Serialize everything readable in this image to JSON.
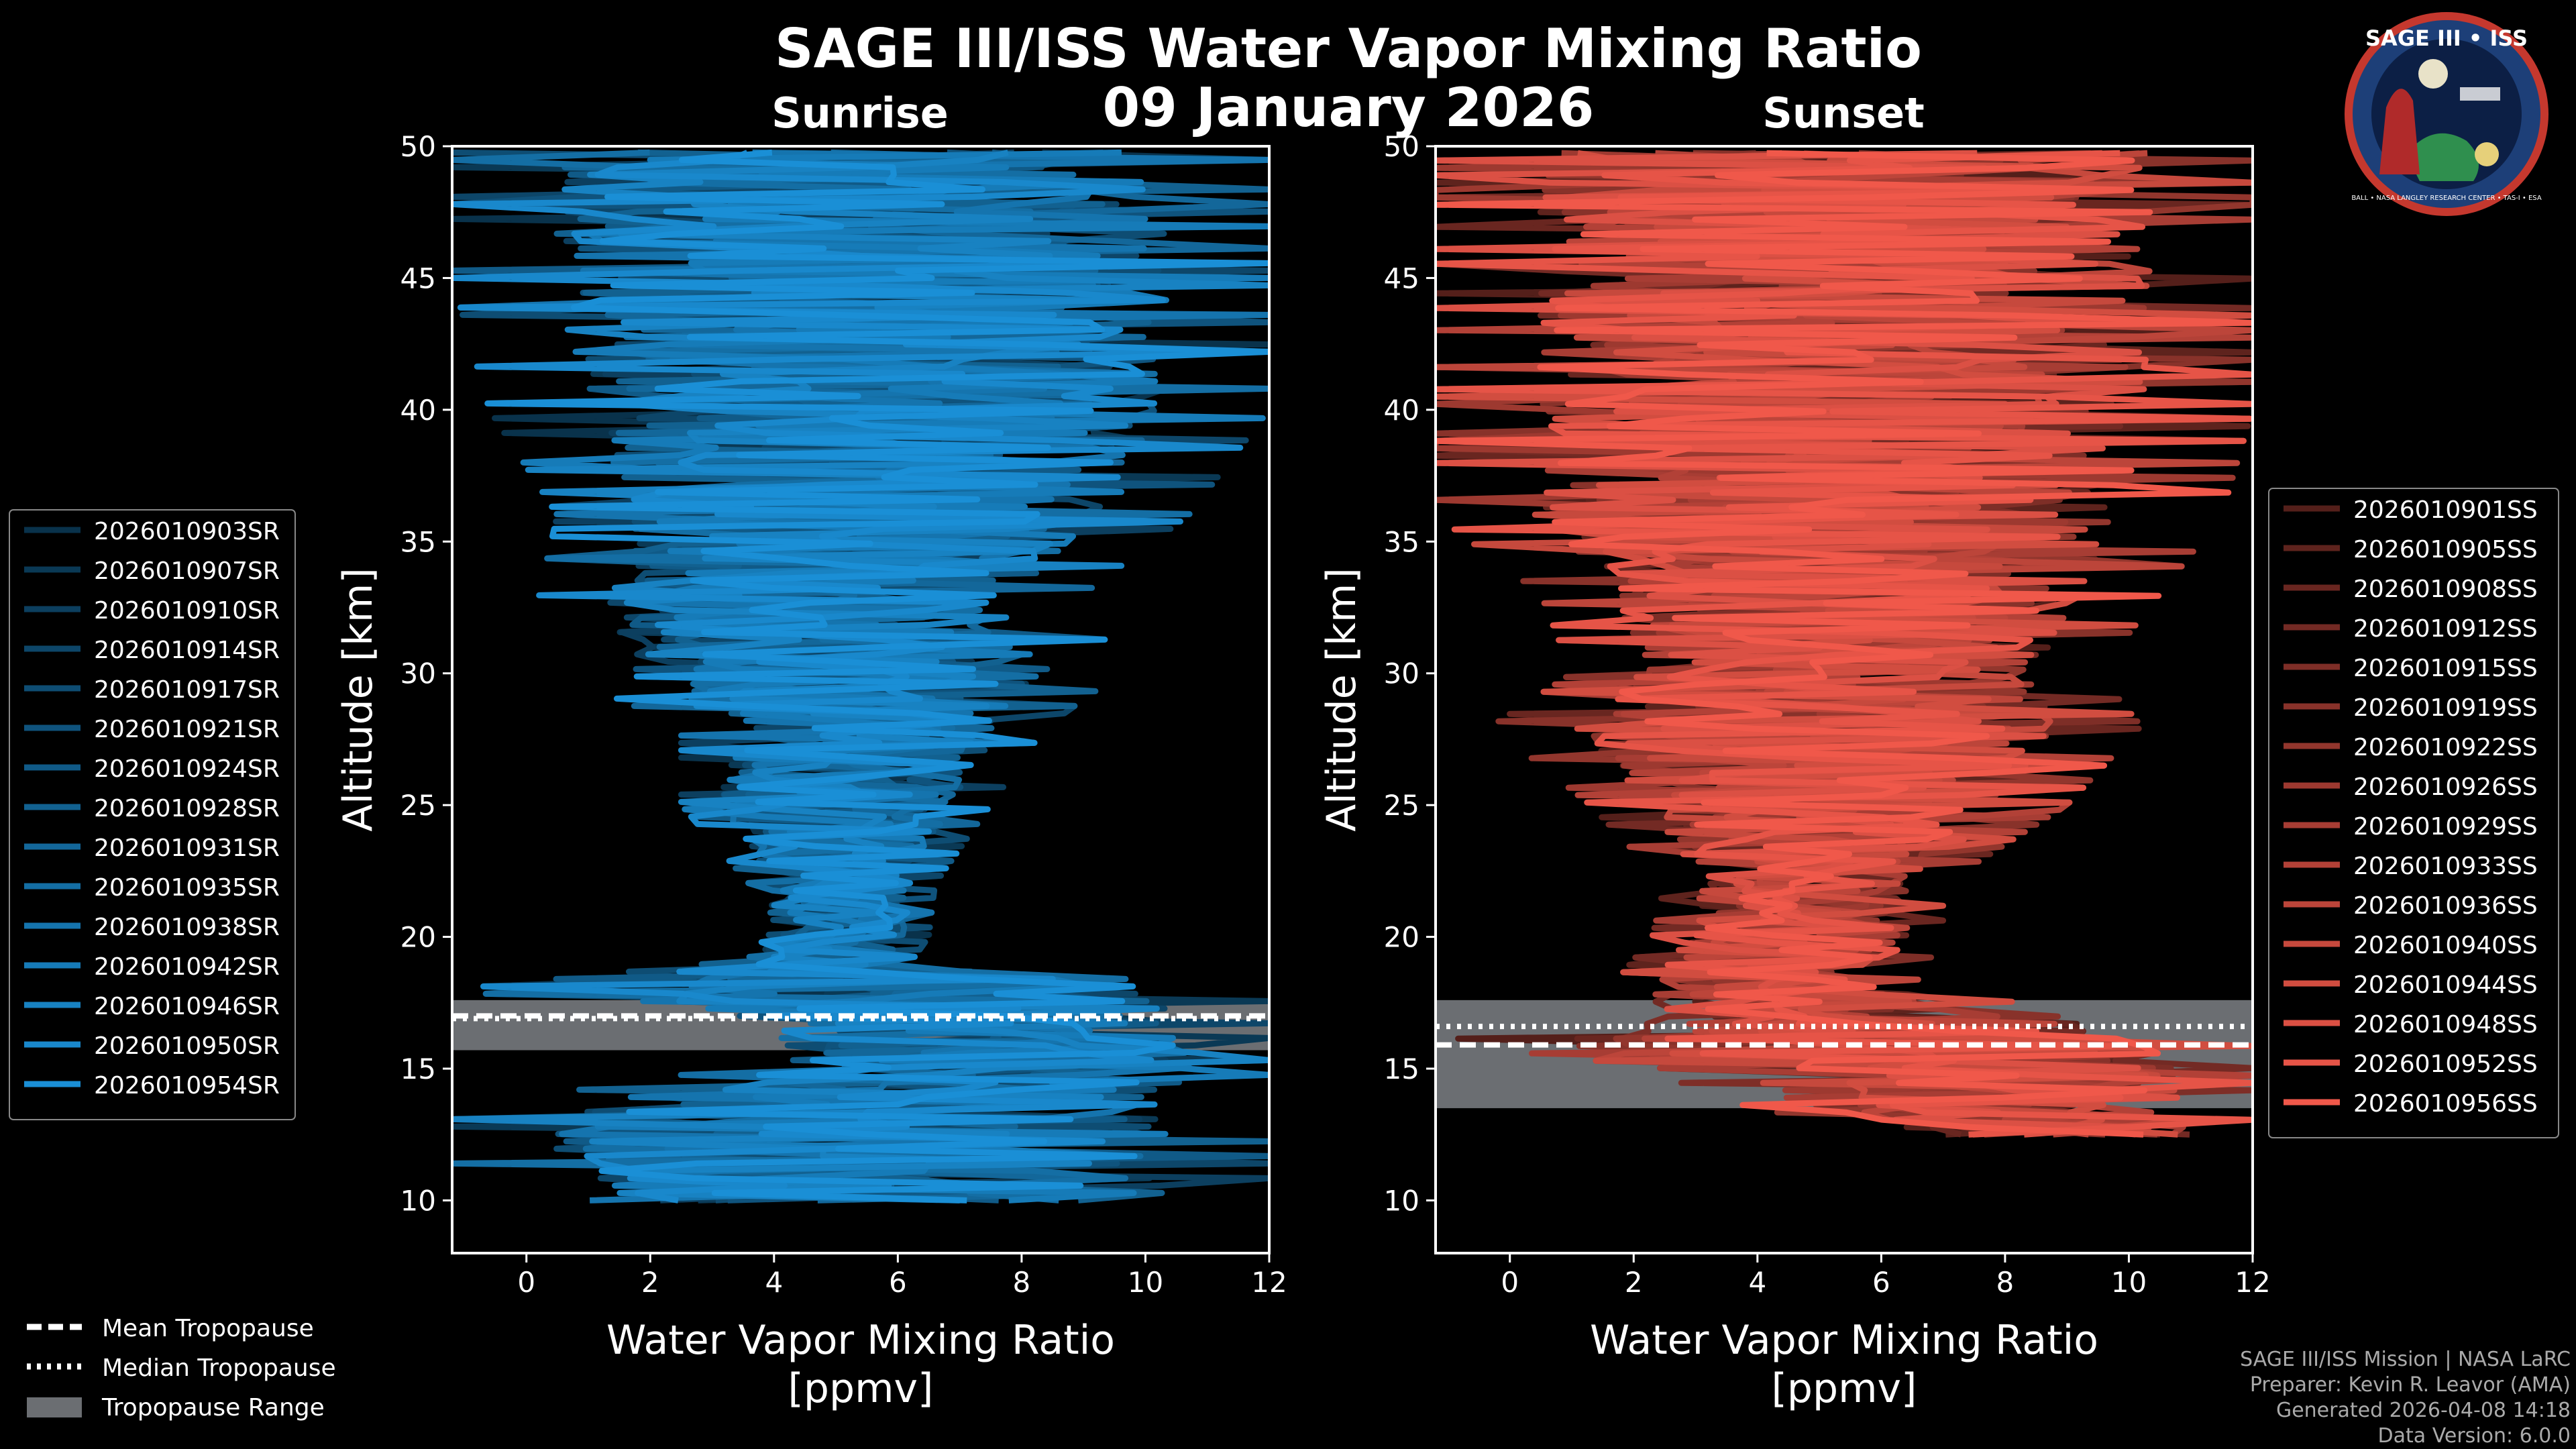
{
  "figure": {
    "title": "SAGE III/ISS Water Vapor Mixing Ratio",
    "date": "09 January 2026",
    "colors": {
      "background": "#000000",
      "sunrise": "#1a8fd6",
      "sunset": "#f0584a",
      "tropopause_fill": "#6b6e72"
    }
  },
  "logo": {
    "top_text": "SAGE III • ISS",
    "ring_text": "BALL • NASA LANGLEY RESEARCH CENTER • TAS-I • ESA"
  },
  "credits": {
    "line1": "SAGE III/ISS Mission | NASA LaRC",
    "line2": "Preparer: Kevin R. Leavor (AMA)",
    "line3": "Generated 2026-04-08 14:18",
    "line4": "Data Version: 6.0.0"
  },
  "tropopause_legend": {
    "mean": "Mean Tropopause",
    "median": "Median Tropopause",
    "range": "Tropopause Range"
  },
  "chart_data": [
    {
      "type": "line",
      "title": "Sunrise",
      "xlabel": "Water Vapor Mixing Ratio\n[ppmv]",
      "xlabel_lines": [
        "Water Vapor Mixing Ratio",
        "[ppmv]"
      ],
      "ylabel": "Altitude [km]",
      "xlim": [
        -1.2,
        12
      ],
      "ylim": [
        8,
        50
      ],
      "xticks": [
        0,
        2,
        4,
        6,
        8,
        10,
        12
      ],
      "yticks": [
        10,
        15,
        20,
        25,
        30,
        35,
        40,
        45,
        50
      ],
      "legend_position": "left",
      "series_names": [
        "2026010903SR",
        "2026010907SR",
        "2026010910SR",
        "2026010914SR",
        "2026010917SR",
        "2026010921SR",
        "2026010924SR",
        "2026010928SR",
        "2026010931SR",
        "2026010935SR",
        "2026010938SR",
        "2026010942SR",
        "2026010946SR",
        "2026010950SR",
        "2026010954SR"
      ],
      "tropopause": {
        "mean": 17.0,
        "median": 16.9,
        "range": [
          15.7,
          17.6
        ]
      },
      "profile_envelope": [
        {
          "alt": 10,
          "min": -1.2,
          "max": 12
        },
        {
          "alt": 13.5,
          "min": -1.2,
          "max": 12
        },
        {
          "alt": 15,
          "min": 3.2,
          "max": 12
        },
        {
          "alt": 16,
          "min": 2.8,
          "max": 12
        },
        {
          "alt": 17,
          "min": 2.2,
          "max": 12
        },
        {
          "alt": 18,
          "min": -1.2,
          "max": 12
        },
        {
          "alt": 19,
          "min": 3.0,
          "max": 6.2
        },
        {
          "alt": 20,
          "min": 3.5,
          "max": 6.5
        },
        {
          "alt": 22,
          "min": 3.6,
          "max": 6.6
        },
        {
          "alt": 25,
          "min": 2.5,
          "max": 7.5
        },
        {
          "alt": 28,
          "min": 2.5,
          "max": 8.4
        },
        {
          "alt": 30,
          "min": 0.5,
          "max": 9.6
        },
        {
          "alt": 33,
          "min": 0.2,
          "max": 9.0
        },
        {
          "alt": 36,
          "min": 0.5,
          "max": 10.7
        },
        {
          "alt": 40,
          "min": -0.6,
          "max": 12
        },
        {
          "alt": 45,
          "min": -1.2,
          "max": 12
        },
        {
          "alt": 50,
          "min": -1.2,
          "max": 12
        }
      ]
    },
    {
      "type": "line",
      "title": "Sunset",
      "xlabel": "Water Vapor Mixing Ratio\n[ppmv]",
      "xlabel_lines": [
        "Water Vapor Mixing Ratio",
        "[ppmv]"
      ],
      "ylabel": "Altitude [km]",
      "xlim": [
        -1.2,
        12
      ],
      "ylim": [
        8,
        50
      ],
      "xticks": [
        0,
        2,
        4,
        6,
        8,
        10,
        12
      ],
      "yticks": [
        10,
        15,
        20,
        25,
        30,
        35,
        40,
        45,
        50
      ],
      "legend_position": "right",
      "series_names": [
        "2026010901SS",
        "2026010905SS",
        "2026010908SS",
        "2026010912SS",
        "2026010915SS",
        "2026010919SS",
        "2026010922SS",
        "2026010926SS",
        "2026010929SS",
        "2026010933SS",
        "2026010936SS",
        "2026010940SS",
        "2026010944SS",
        "2026010948SS",
        "2026010952SS",
        "2026010956SS"
      ],
      "tropopause": {
        "mean": 15.9,
        "median": 16.6,
        "range": [
          13.5,
          17.6
        ]
      },
      "profile_envelope": [
        {
          "alt": 12.5,
          "min": 6.0,
          "max": 12
        },
        {
          "alt": 14,
          "min": 3.0,
          "max": 12
        },
        {
          "alt": 15,
          "min": 2.5,
          "max": 12
        },
        {
          "alt": 16,
          "min": -1.2,
          "max": 12
        },
        {
          "alt": 17,
          "min": 1.4,
          "max": 10
        },
        {
          "alt": 18,
          "min": 1.6,
          "max": 6.5
        },
        {
          "alt": 20,
          "min": 2.3,
          "max": 7.0
        },
        {
          "alt": 22,
          "min": 2.5,
          "max": 7.0
        },
        {
          "alt": 25,
          "min": 1.3,
          "max": 9.0
        },
        {
          "alt": 28,
          "min": -0.3,
          "max": 10.2
        },
        {
          "alt": 30,
          "min": 1.0,
          "max": 9.5
        },
        {
          "alt": 33,
          "min": 0.5,
          "max": 10.5
        },
        {
          "alt": 36,
          "min": -1.2,
          "max": 11.5
        },
        {
          "alt": 40,
          "min": -1.2,
          "max": 12
        },
        {
          "alt": 45,
          "min": -1.2,
          "max": 12
        },
        {
          "alt": 50,
          "min": -1.2,
          "max": 12
        }
      ]
    }
  ]
}
